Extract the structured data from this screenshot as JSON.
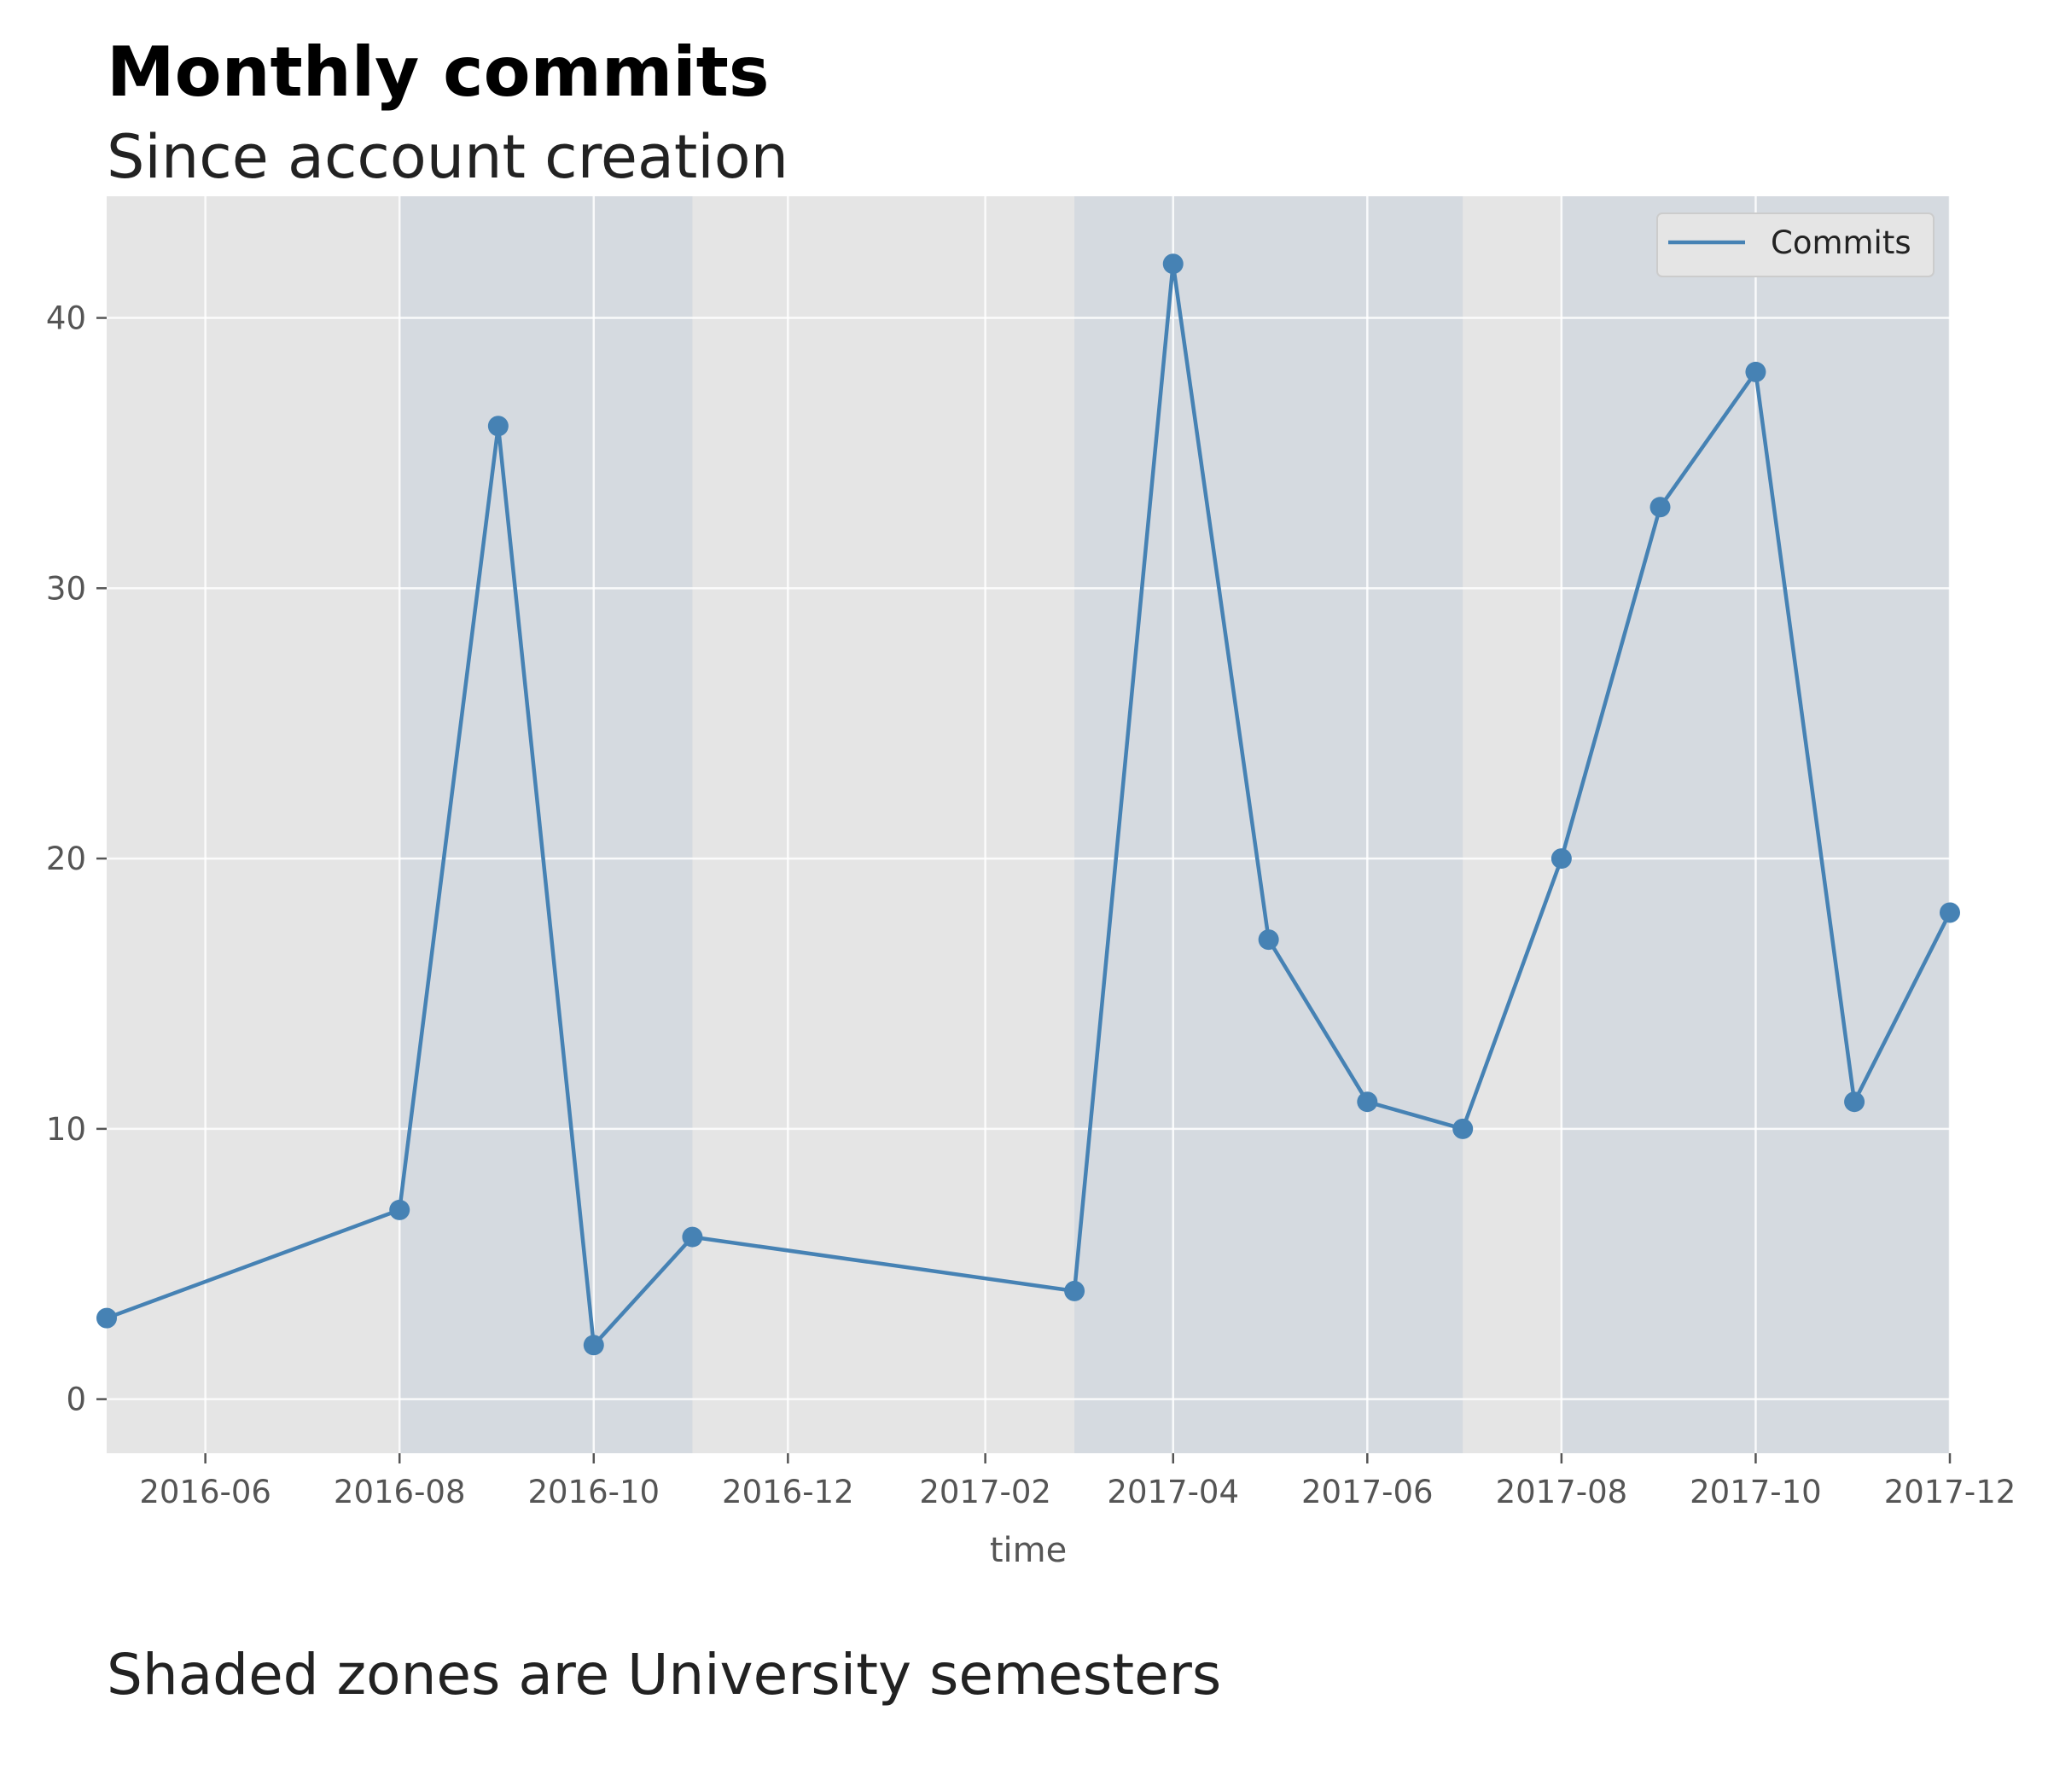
{
  "chart_data": {
    "type": "line",
    "title": "Monthly commits",
    "subtitle": "Since account creation",
    "caption": "Shaded zones are University semesters",
    "xlabel": "time",
    "ylabel": "",
    "xlim": [
      "2016-05-01",
      "2017-12-01"
    ],
    "ylim": [
      -2,
      44.5
    ],
    "x_ticks": [
      "2016-06",
      "2016-08",
      "2016-10",
      "2016-12",
      "2017-02",
      "2017-04",
      "2017-06",
      "2017-08",
      "2017-10",
      "2017-12"
    ],
    "y_ticks": [
      0,
      10,
      20,
      30,
      40
    ],
    "grid": true,
    "legend_position": "top-right",
    "colors": {
      "line": "#4682b4",
      "plot_background": "#e5e5e5",
      "semester_shade": "#d5dae0",
      "grid": "#ffffff"
    },
    "shaded_regions": [
      {
        "start": "2016-08-01",
        "end": "2016-11-01"
      },
      {
        "start": "2017-03-01",
        "end": "2017-07-01"
      },
      {
        "start": "2017-08-01",
        "end": "2017-12-01"
      }
    ],
    "series": [
      {
        "name": "Commits",
        "marker": "circle",
        "points": [
          {
            "x": "2016-05-01",
            "y": 3
          },
          {
            "x": "2016-08-01",
            "y": 7
          },
          {
            "x": "2016-09-01",
            "y": 36
          },
          {
            "x": "2016-10-01",
            "y": 2
          },
          {
            "x": "2016-11-01",
            "y": 6
          },
          {
            "x": "2017-03-01",
            "y": 4
          },
          {
            "x": "2017-04-01",
            "y": 42
          },
          {
            "x": "2017-05-01",
            "y": 17
          },
          {
            "x": "2017-06-01",
            "y": 11
          },
          {
            "x": "2017-07-01",
            "y": 10
          },
          {
            "x": "2017-08-01",
            "y": 20
          },
          {
            "x": "2017-09-01",
            "y": 33
          },
          {
            "x": "2017-10-01",
            "y": 38
          },
          {
            "x": "2017-11-01",
            "y": 11
          },
          {
            "x": "2017-12-01",
            "y": 18
          }
        ]
      }
    ]
  }
}
